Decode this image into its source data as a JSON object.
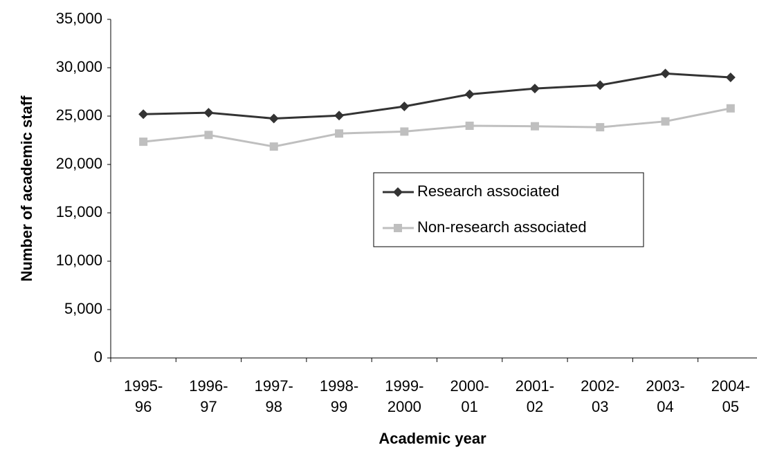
{
  "chart_data": {
    "type": "line",
    "x_label": "Academic year",
    "y_label": "Number of academic staff",
    "categories": [
      [
        "1995-",
        "96"
      ],
      [
        "1996-",
        "97"
      ],
      [
        "1997-",
        "98"
      ],
      [
        "1998-",
        "99"
      ],
      [
        "1999-",
        "2000"
      ],
      [
        "2000-",
        "01"
      ],
      [
        "2001-",
        "02"
      ],
      [
        "2002-",
        "03"
      ],
      [
        "2003-",
        "04"
      ],
      [
        "2004-",
        "05"
      ]
    ],
    "series": [
      {
        "name": "Research associated",
        "color": "#333333",
        "marker": "diamond",
        "values": [
          25200,
          25350,
          24750,
          25050,
          26000,
          27250,
          27850,
          28200,
          29400,
          29000
        ]
      },
      {
        "name": "Non-research associated",
        "color": "#bfbfbf",
        "marker": "square",
        "values": [
          22350,
          23050,
          21850,
          23200,
          23400,
          24000,
          23950,
          23850,
          24450,
          25800
        ]
      }
    ],
    "ylim": [
      0,
      35000
    ],
    "yticks": [
      0,
      {
        "value": 5000,
        "label": "5,000"
      },
      {
        "value": 10000,
        "label": "10,000"
      },
      {
        "value": 15000,
        "label": "15,000"
      },
      {
        "value": 20000,
        "label": "20,000"
      },
      {
        "value": 25000,
        "label": "25,000"
      },
      {
        "value": 30000,
        "label": "30,000"
      },
      {
        "value": 35000,
        "label": "35,000"
      }
    ],
    "grid": false
  }
}
